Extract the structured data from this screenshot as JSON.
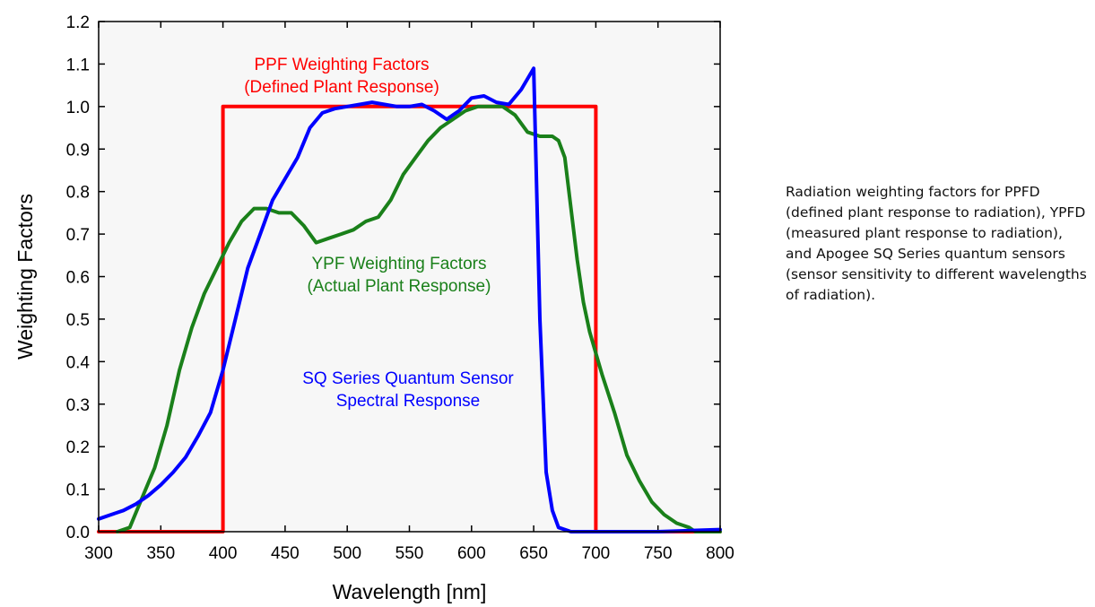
{
  "caption": "Radiation weighting factors for PPFD (defined plant response to radiation), YPFD (measured plant response to radiation), and Apogee SQ Series quantum sensors (sensor sensitivity to different wavelengths of radiation).",
  "chart_data": {
    "type": "line",
    "title": "",
    "xlabel": "Wavelength [nm]",
    "ylabel": "Weighting Factors",
    "xlim": [
      300,
      800
    ],
    "ylim": [
      0,
      1.2
    ],
    "xticks": [
      300,
      350,
      400,
      450,
      500,
      550,
      600,
      650,
      700,
      750,
      800
    ],
    "yticks": [
      "0.0",
      "0.1",
      "0.2",
      "0.3",
      "0.4",
      "0.5",
      "0.6",
      "0.7",
      "0.8",
      "0.9",
      "1.0",
      "1.1",
      "1.2"
    ],
    "grid": false,
    "series": [
      {
        "name": "PPF Weighting Factors (Defined Plant Response)",
        "color": "#ff0000",
        "x": [
          300,
          400,
          400,
          700,
          700,
          800
        ],
        "y": [
          0,
          0,
          1.0,
          1.0,
          0,
          0
        ]
      },
      {
        "name": "YPF Weighting Factors (Actual Plant Response)",
        "color": "#1a801a",
        "x": [
          315,
          325,
          335,
          345,
          355,
          365,
          375,
          385,
          395,
          405,
          415,
          425,
          435,
          445,
          455,
          465,
          475,
          485,
          495,
          505,
          515,
          525,
          535,
          545,
          555,
          565,
          575,
          585,
          595,
          605,
          615,
          625,
          635,
          645,
          655,
          660,
          665,
          670,
          675,
          680,
          685,
          690,
          695,
          700,
          705,
          715,
          725,
          735,
          745,
          755,
          765,
          775,
          780,
          800
        ],
        "y": [
          0.0,
          0.01,
          0.08,
          0.15,
          0.25,
          0.38,
          0.48,
          0.56,
          0.62,
          0.68,
          0.73,
          0.76,
          0.76,
          0.75,
          0.75,
          0.72,
          0.68,
          0.69,
          0.7,
          0.71,
          0.73,
          0.74,
          0.78,
          0.84,
          0.88,
          0.92,
          0.95,
          0.97,
          0.99,
          1.0,
          1.0,
          1.0,
          0.98,
          0.94,
          0.93,
          0.93,
          0.93,
          0.92,
          0.88,
          0.76,
          0.64,
          0.54,
          0.47,
          0.42,
          0.37,
          0.28,
          0.18,
          0.12,
          0.07,
          0.04,
          0.02,
          0.01,
          0.0,
          0.0
        ]
      },
      {
        "name": "SQ Series Quantum Sensor Spectral Response",
        "color": "#0000ff",
        "x": [
          300,
          310,
          320,
          330,
          340,
          350,
          360,
          370,
          380,
          390,
          400,
          410,
          420,
          430,
          440,
          450,
          460,
          470,
          480,
          490,
          500,
          510,
          520,
          530,
          540,
          550,
          560,
          570,
          580,
          590,
          600,
          610,
          620,
          630,
          640,
          650,
          655,
          660,
          665,
          670,
          680,
          700,
          750,
          800
        ],
        "y": [
          0.03,
          0.04,
          0.05,
          0.065,
          0.085,
          0.11,
          0.14,
          0.175,
          0.225,
          0.28,
          0.38,
          0.5,
          0.62,
          0.7,
          0.78,
          0.83,
          0.88,
          0.95,
          0.985,
          0.995,
          1.0,
          1.005,
          1.01,
          1.005,
          1.0,
          1.0,
          1.005,
          0.99,
          0.97,
          0.99,
          1.02,
          1.025,
          1.01,
          1.005,
          1.04,
          1.09,
          0.5,
          0.14,
          0.05,
          0.01,
          0.0,
          0.0,
          0.0,
          0.005
        ]
      }
    ],
    "annotations": [
      {
        "id": "ppf",
        "lines": [
          "PPF Weighting Factors",
          "(Defined Plant Response)"
        ],
        "color": "#ff0000"
      },
      {
        "id": "ypf",
        "lines": [
          "YPF Weighting Factors",
          "(Actual Plant Response)"
        ],
        "color": "#1a801a"
      },
      {
        "id": "sq",
        "lines": [
          "SQ Series Quantum Sensor",
          "Spectral Response"
        ],
        "color": "#0000ff"
      }
    ]
  }
}
